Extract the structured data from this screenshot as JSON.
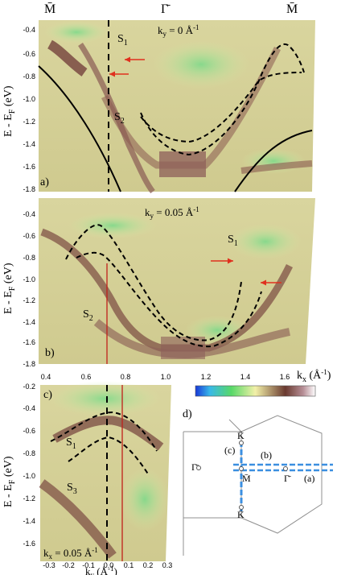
{
  "top_axis": {
    "labels": [
      "M̄",
      "Γ̄",
      "M̄"
    ]
  },
  "panels": {
    "a": {
      "label": "a)",
      "ky_label": "k",
      "ky_sub": "y",
      "ky_value": " = 0 Å",
      "ky_exp": "-1",
      "states": [
        {
          "name": "S",
          "sub": "1"
        },
        {
          "name": "S",
          "sub": "2"
        }
      ],
      "y_ticks": [
        "-0.4",
        "-0.6",
        "-0.8",
        "-1.0",
        "-1.2",
        "-1.4",
        "-1.6",
        "-1.8"
      ]
    },
    "b": {
      "label": "b)",
      "ky_label": "k",
      "ky_sub": "y",
      "ky_value": " = 0.05 Å",
      "ky_exp": "-1",
      "states": [
        {
          "name": "S",
          "sub": "1"
        },
        {
          "name": "S",
          "sub": "2"
        }
      ],
      "y_ticks": [
        "-0.4",
        "-0.6",
        "-0.8",
        "-1.0",
        "-1.2",
        "-1.4",
        "-1.6",
        "-1.8"
      ],
      "x_ticks": [
        "0.4",
        "0.6",
        "0.8",
        "1.0",
        "1.2",
        "1.4",
        "1.6"
      ],
      "x_label": "k",
      "x_sub": "x",
      "x_unit": " (Å",
      "x_exp": "-1",
      "x_close": ")"
    },
    "c": {
      "label": "c)",
      "kx_label": "k",
      "kx_sub": "x",
      "kx_value": " = 0.05 Å",
      "kx_exp": "-1",
      "states": [
        {
          "name": "S",
          "sub": "1"
        },
        {
          "name": "S",
          "sub": "3"
        }
      ],
      "y_ticks": [
        "-0.2",
        "-0.4",
        "-0.6",
        "-0.8",
        "-1.0",
        "-1.2",
        "-1.4",
        "-1.6"
      ],
      "x_ticks": [
        "-0.3",
        "-0.2",
        "-0.1",
        "0.0",
        "0.1",
        "0.2",
        "0.3"
      ],
      "x_label": "k",
      "x_sub": "y",
      "x_unit": " (Å",
      "x_exp": "-1",
      "x_close": ")"
    },
    "d": {
      "label": "d)",
      "points": {
        "K_top": "K̄",
        "K_bottom": "K̄",
        "M": "M̄",
        "Gamma_left": "Γ̄",
        "Gamma_right": "Γ̄"
      },
      "cut_labels": {
        "a": "(a)",
        "b": "(b)",
        "c": "(c)"
      }
    }
  },
  "y_axis_label": {
    "text": "E - E",
    "sub": "F",
    "unit": " (eV)"
  },
  "colors": {
    "arrow": "#e0301e",
    "red_line": "#c0201a",
    "cut_line": "#3b8fe0",
    "bz_line": "#909090"
  }
}
